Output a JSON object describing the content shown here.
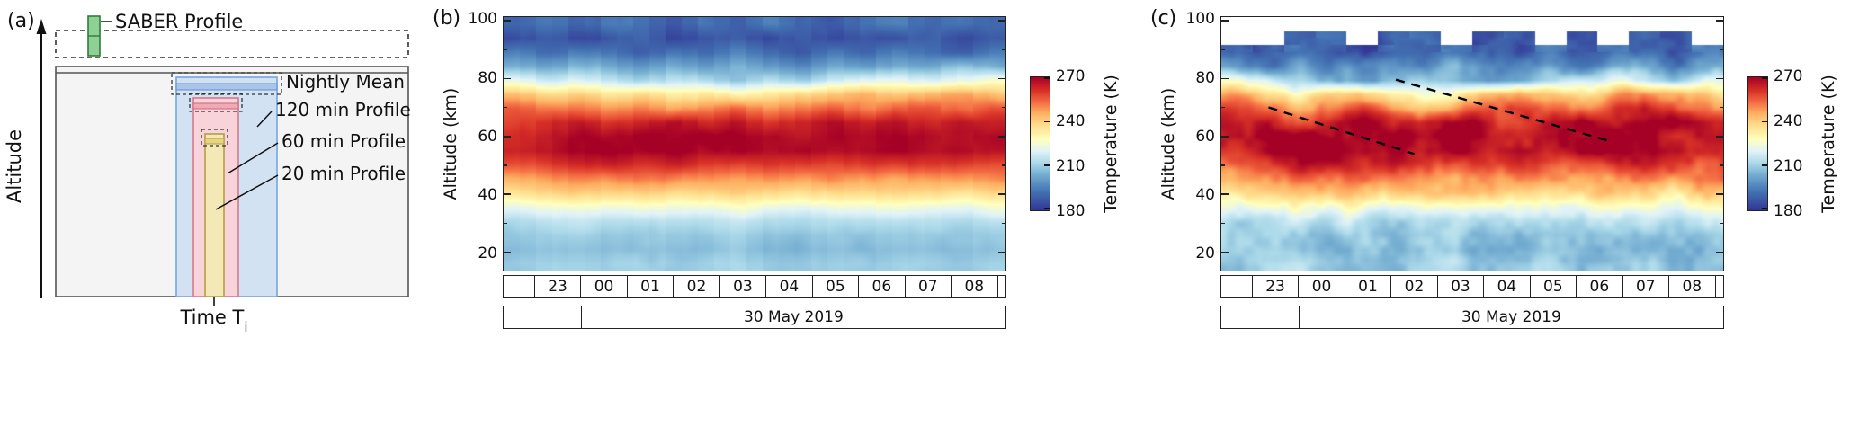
{
  "panel_a": {
    "label": "(a)",
    "altitude_axis_label": "Altitude",
    "saber_label": "SABER Profile",
    "nightly_mean_label": "Nightly Mean",
    "profile_120_label": "120 min Profile",
    "profile_60_label": "60 min Profile",
    "profile_20_label": "20 min Profile",
    "time_label_prefix": "Time T",
    "time_label_sub": "i",
    "colors": {
      "saber_fill": "#8fd096",
      "saber_stroke": "#2e7d36",
      "window_fill": "#f4f4f4",
      "window_stroke": "#555555",
      "p120_fill": "#d3e2f2",
      "p120_stroke": "#76a5d8",
      "p60_fill": "#f8d4da",
      "p60_stroke": "#d4798a",
      "p20_fill": "#f4e9b6",
      "p20_stroke": "#b1a041"
    }
  },
  "colormap": {
    "min": 180,
    "max": 270,
    "stops": [
      {
        "v": 180,
        "c": "#313695"
      },
      {
        "v": 193,
        "c": "#4575b4"
      },
      {
        "v": 204,
        "c": "#74add1"
      },
      {
        "v": 212,
        "c": "#abd9e9"
      },
      {
        "v": 220,
        "c": "#e0f3f8"
      },
      {
        "v": 228,
        "c": "#ffffbf"
      },
      {
        "v": 237,
        "c": "#fee090"
      },
      {
        "v": 246,
        "c": "#fdae61"
      },
      {
        "v": 253,
        "c": "#f46d43"
      },
      {
        "v": 261,
        "c": "#d73027"
      },
      {
        "v": 270,
        "c": "#a50026"
      }
    ]
  },
  "chart_data": [
    {
      "type": "heatmap",
      "id": "b",
      "panel_label": "(b)",
      "ylabel": "Altitude (km)",
      "render": "binned",
      "bins": 31,
      "colorbar": {
        "label": "Temperature (K)",
        "ticks": [
          270,
          240,
          210,
          180
        ],
        "min": 180,
        "max": 270
      },
      "x_axis": {
        "start": 21.83,
        "end": 32.67,
        "cell_edges": [
          22.5,
          23.5,
          24.5,
          25.5,
          26.5,
          27.5,
          28.5,
          29.5,
          30.5,
          31.5,
          32.5
        ],
        "tick_labels": [
          "23",
          "00",
          "01",
          "02",
          "03",
          "04",
          "05",
          "06",
          "07",
          "08"
        ],
        "date_boundary": 23.5,
        "date_label": "30 May 2019"
      },
      "y_axis": {
        "min": 14,
        "max": 101,
        "ticks": [
          20,
          40,
          60,
          80,
          100
        ],
        "minor_ticks": [
          30,
          50,
          70,
          90
        ]
      },
      "altitudes_km": [
        100,
        95,
        90,
        85,
        80,
        75,
        70,
        65,
        60,
        55,
        50,
        45,
        40,
        35,
        30,
        25,
        20,
        15
      ],
      "values_K": [
        [
          190,
          194,
          188,
          196,
          191,
          186,
          193,
          189,
          195,
          190,
          187,
          192,
          196,
          189,
          193,
          190
        ],
        [
          184,
          189,
          183,
          187,
          190,
          182,
          186,
          189,
          184,
          188,
          183,
          187,
          185,
          190,
          184,
          187
        ],
        [
          195,
          190,
          196,
          192,
          188,
          194,
          190,
          196,
          191,
          187,
          193,
          189,
          195,
          192,
          188,
          194
        ],
        [
          205,
          200,
          207,
          202,
          198,
          204,
          200,
          206,
          201,
          197,
          203,
          199,
          205,
          202,
          208,
          204
        ],
        [
          222,
          216,
          220,
          214,
          210,
          216,
          212,
          208,
          214,
          210,
          216,
          220,
          224,
          218,
          222,
          226
        ],
        [
          242,
          236,
          240,
          234,
          238,
          232,
          236,
          230,
          234,
          238,
          242,
          246,
          240,
          244,
          248,
          242
        ],
        [
          255,
          250,
          253,
          248,
          252,
          246,
          250,
          254,
          248,
          252,
          256,
          250,
          254,
          258,
          252,
          256
        ],
        [
          258,
          262,
          266,
          260,
          264,
          268,
          262,
          266,
          260,
          264,
          268,
          263,
          267,
          262,
          266,
          264
        ],
        [
          262,
          266,
          270,
          268,
          271,
          269,
          272,
          270,
          268,
          266,
          269,
          267,
          270,
          268,
          266,
          269
        ],
        [
          264,
          267,
          270,
          272,
          269,
          271,
          268,
          270,
          267,
          269,
          266,
          268,
          270,
          267,
          269,
          266
        ],
        [
          256,
          259,
          262,
          264,
          261,
          263,
          260,
          258,
          261,
          259,
          257,
          260,
          258,
          261,
          259,
          257
        ],
        [
          245,
          248,
          251,
          249,
          252,
          250,
          248,
          246,
          249,
          247,
          250,
          248,
          246,
          249,
          247,
          250
        ],
        [
          236,
          239,
          241,
          238,
          240,
          237,
          239,
          241,
          238,
          236,
          239,
          237,
          240,
          238,
          236,
          239
        ],
        [
          222,
          225,
          227,
          224,
          226,
          223,
          225,
          227,
          224,
          222,
          225,
          223,
          226,
          224,
          222,
          225
        ],
        [
          212,
          215,
          216,
          214,
          215,
          213,
          214,
          216,
          213,
          212,
          214,
          213,
          215,
          214,
          212,
          215
        ],
        [
          208,
          210,
          211,
          209,
          210,
          208,
          209,
          211,
          208,
          207,
          209,
          208,
          210,
          209,
          208,
          210
        ],
        [
          206,
          208,
          209,
          207,
          208,
          206,
          207,
          209,
          206,
          205,
          207,
          206,
          208,
          207,
          206,
          208
        ],
        [
          209,
          211,
          212,
          210,
          211,
          209,
          210,
          212,
          209,
          208,
          210,
          209,
          211,
          210,
          209,
          211
        ]
      ]
    },
    {
      "type": "heatmap",
      "id": "c",
      "panel_label": "(c)",
      "ylabel": "Altitude (km)",
      "render": "smooth",
      "colorbar": {
        "label": "Temperature (K)",
        "ticks": [
          270,
          240,
          210,
          180
        ],
        "min": 180,
        "max": 270
      },
      "x_axis": {
        "start": 21.83,
        "end": 32.67,
        "cell_edges": [
          22.5,
          23.5,
          24.5,
          25.5,
          26.5,
          27.5,
          28.5,
          29.5,
          30.5,
          31.5,
          32.5
        ],
        "tick_labels": [
          "23",
          "00",
          "01",
          "02",
          "03",
          "04",
          "05",
          "06",
          "07",
          "08"
        ],
        "date_boundary": 23.5,
        "date_label": "30 May 2019"
      },
      "y_axis": {
        "min": 14,
        "max": 101,
        "ticks": [
          20,
          40,
          60,
          80,
          100
        ],
        "minor_ticks": [
          30,
          50,
          70,
          90
        ]
      },
      "altitudes_km": [
        100,
        95,
        90,
        85,
        80,
        75,
        70,
        65,
        60,
        55,
        50,
        45,
        40,
        35,
        30,
        25,
        20,
        15
      ],
      "values_K": [
        [
          null,
          null,
          null,
          null,
          null,
          null,
          null,
          null,
          null,
          null,
          null,
          null,
          null,
          null,
          null,
          null
        ],
        [
          null,
          null,
          188,
          192,
          null,
          186,
          190,
          null,
          185,
          189,
          null,
          187,
          null,
          190,
          186,
          null
        ],
        [
          192,
          187,
          193,
          189,
          185,
          191,
          187,
          194,
          189,
          186,
          192,
          188,
          195,
          190,
          187,
          193
        ],
        [
          200,
          195,
          203,
          198,
          194,
          201,
          196,
          204,
          199,
          195,
          202,
          197,
          205,
          200,
          196,
          203
        ],
        [
          225,
          218,
          212,
          206,
          200,
          208,
          214,
          204,
          198,
          206,
          212,
          218,
          224,
          216,
          210,
          220
        ],
        [
          245,
          238,
          232,
          240,
          246,
          236,
          228,
          234,
          242,
          248,
          240,
          234,
          246,
          252,
          244,
          238
        ],
        [
          258,
          252,
          246,
          252,
          258,
          250,
          244,
          250,
          256,
          262,
          254,
          248,
          258,
          264,
          256,
          250
        ],
        [
          262,
          266,
          258,
          264,
          270,
          262,
          268,
          272,
          264,
          258,
          266,
          270,
          262,
          268,
          272,
          266
        ],
        [
          266,
          270,
          274,
          268,
          272,
          276,
          270,
          274,
          268,
          264,
          270,
          266,
          272,
          268,
          264,
          270
        ],
        [
          262,
          268,
          272,
          274,
          270,
          273,
          268,
          272,
          266,
          270,
          264,
          268,
          272,
          266,
          270,
          264
        ],
        [
          256,
          260,
          264,
          266,
          262,
          264,
          260,
          257,
          262,
          258,
          255,
          260,
          257,
          262,
          258,
          255
        ],
        [
          246,
          250,
          253,
          250,
          254,
          251,
          248,
          245,
          250,
          247,
          251,
          248,
          245,
          250,
          247,
          251
        ],
        [
          236,
          240,
          243,
          239,
          242,
          238,
          240,
          243,
          239,
          236,
          240,
          237,
          241,
          238,
          236,
          240
        ],
        [
          222,
          226,
          228,
          224,
          227,
          223,
          226,
          228,
          224,
          221,
          225,
          222,
          227,
          224,
          221,
          226
        ],
        [
          212,
          215,
          217,
          214,
          216,
          213,
          215,
          217,
          213,
          211,
          214,
          212,
          216,
          214,
          211,
          215
        ],
        [
          208,
          210,
          212,
          209,
          211,
          208,
          210,
          212,
          208,
          207,
          209,
          208,
          210,
          209,
          207,
          210
        ],
        [
          206,
          208,
          210,
          207,
          209,
          206,
          208,
          210,
          206,
          205,
          207,
          206,
          208,
          207,
          205,
          208
        ],
        [
          209,
          211,
          213,
          210,
          212,
          209,
          211,
          213,
          209,
          208,
          210,
          209,
          211,
          210,
          208,
          211
        ]
      ],
      "annotations": {
        "dashed_lines": [
          {
            "t1": 22.85,
            "z1": 70.0,
            "t2": 26.0,
            "z2": 54.0
          },
          {
            "t1": 25.6,
            "z1": 79.5,
            "t2": 30.2,
            "z2": 58.5
          }
        ]
      }
    }
  ]
}
